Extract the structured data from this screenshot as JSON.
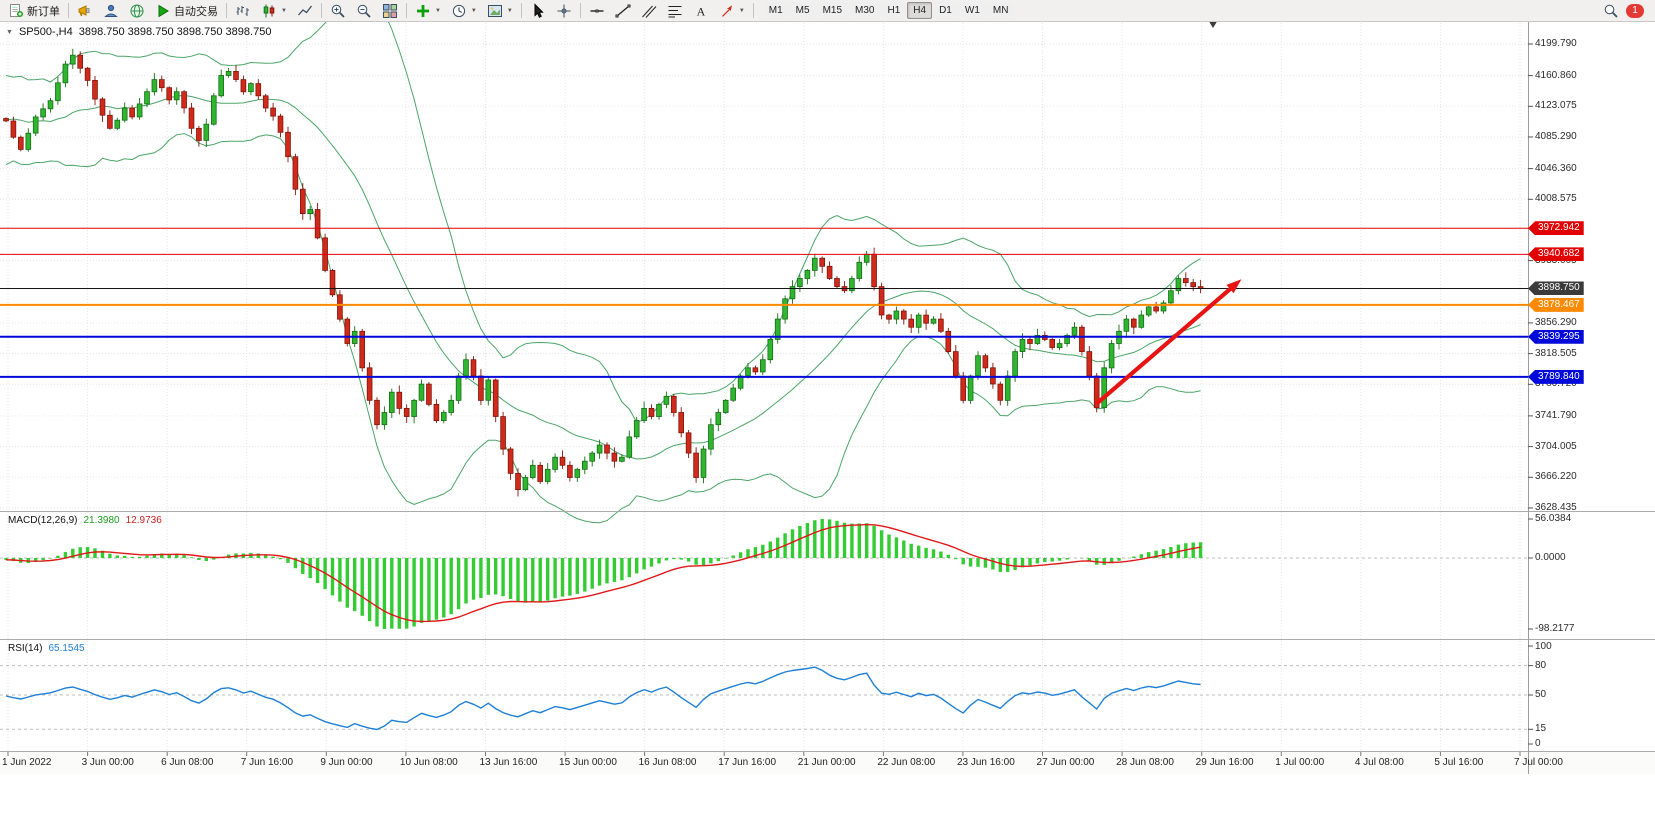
{
  "toolbar": {
    "new_order_label": "新订单",
    "algo_trading_label": "自动交易",
    "timeframes": [
      "M1",
      "M5",
      "M15",
      "M30",
      "H1",
      "H4",
      "D1",
      "W1",
      "MN"
    ],
    "active_timeframe": "H4",
    "notification_badge": "1",
    "icon_buttons": [
      "new-order",
      "news",
      "community",
      "market",
      "algo-trading",
      "bar-chart",
      "candle-chart",
      "line-chart",
      "zoom-in",
      "zoom-out",
      "tile-windows",
      "indicators-add",
      "timeframes-clock",
      "chart-template",
      "cursor",
      "crosshair",
      "horizontal-line",
      "trend-line",
      "channel",
      "fibonacci",
      "text-tool",
      "arrows-tool",
      "search",
      "notifications"
    ]
  },
  "chart_title": {
    "symbol": "SP500-,H4",
    "ohlc": "3898.750 3898.750 3898.750 3898.750"
  },
  "chart_data": {
    "type": "candlestick",
    "symbol": "SP500-",
    "timeframe": "H4",
    "time_axis_labels": [
      "1 Jun 2022",
      "3 Jun 00:00",
      "6 Jun 08:00",
      "7 Jun 16:00",
      "9 Jun 00:00",
      "10 Jun 08:00",
      "13 Jun 16:00",
      "15 Jun 00:00",
      "16 Jun 08:00",
      "17 Jun 16:00",
      "21 Jun 00:00",
      "22 Jun 08:00",
      "23 Jun 16:00",
      "27 Jun 00:00",
      "28 Jun 08:00",
      "29 Jun 16:00",
      "1 Jul 00:00",
      "4 Jul 08:00",
      "5 Jul 16:00",
      "7 Jul 00:00"
    ],
    "price_axis_ticks": [
      4199.79,
      4160.86,
      4123.075,
      4085.29,
      4046.36,
      4008.575,
      3933.005,
      3856.29,
      3818.505,
      3780.72,
      3741.79,
      3704.005,
      3666.22,
      3628.435
    ],
    "horizontal_lines": [
      {
        "price": 3972.942,
        "label": "3972.942",
        "color": "#e10000",
        "width": 1,
        "tag_bg": "#e10000"
      },
      {
        "price": 3940.682,
        "label": "3940.682",
        "color": "#e10000",
        "width": 1,
        "tag_bg": "#e10000"
      },
      {
        "price": 3898.75,
        "label": "3898.750",
        "color": "#151515",
        "width": 1,
        "tag_bg": "#3a3a3a",
        "is_current_price": true
      },
      {
        "price": 3878.467,
        "label": "3878.467",
        "color": "#ff8a00",
        "width": 2,
        "tag_bg": "#ff8a00"
      },
      {
        "price": 3839.295,
        "label": "3839.295",
        "color": "#0009d9",
        "width": 2,
        "tag_bg": "#0009d9"
      },
      {
        "price": 3789.84,
        "label": "3789.840",
        "color": "#0009d9",
        "width": 2,
        "tag_bg": "#0009d9"
      }
    ],
    "indicator_warmup": [
      4120,
      4060,
      4100,
      4140,
      4080,
      4110,
      4150,
      4090,
      4130,
      4070,
      4110,
      4140,
      4100,
      4060,
      4120,
      4150,
      4090,
      4130,
      4080,
      4108
    ],
    "closes": [
      4105,
      4085,
      4070,
      4090,
      4110,
      4120,
      4130,
      4152,
      4175,
      4186,
      4170,
      4155,
      4132,
      4112,
      4096,
      4106,
      4121,
      4110,
      4126,
      4141,
      4156,
      4146,
      4131,
      4141,
      4121,
      4096,
      4081,
      4101,
      4136,
      4161,
      4166,
      4156,
      4141,
      4151,
      4136,
      4121,
      4111,
      4091,
      4061,
      4021,
      3991,
      3996,
      3961,
      3921,
      3891,
      3861,
      3831,
      3846,
      3801,
      3761,
      3731,
      3746,
      3771,
      3751,
      3741,
      3761,
      3781,
      3756,
      3736,
      3746,
      3761,
      3791,
      3811,
      3791,
      3761,
      3786,
      3741,
      3701,
      3671,
      3651,
      3666,
      3681,
      3661,
      3676,
      3691,
      3681,
      3666,
      3676,
      3686,
      3696,
      3706,
      3696,
      3686,
      3691,
      3716,
      3736,
      3751,
      3741,
      3756,
      3766,
      3746,
      3721,
      3696,
      3666,
      3701,
      3731,
      3746,
      3761,
      3776,
      3791,
      3801,
      3796,
      3811,
      3836,
      3861,
      3886,
      3901,
      3911,
      3921,
      3936,
      3926,
      3911,
      3901,
      3896,
      3911,
      3931,
      3941,
      3901,
      3866,
      3861,
      3871,
      3861,
      3851,
      3866,
      3856,
      3861,
      3846,
      3821,
      3791,
      3761,
      3791,
      3816,
      3801,
      3781,
      3761,
      3791,
      3821,
      3836,
      3831,
      3841,
      3836,
      3826,
      3831,
      3841,
      3851,
      3821,
      3791,
      3752,
      3801,
      3831,
      3846,
      3861,
      3851,
      3866,
      3876,
      3871,
      3881,
      3896,
      3911,
      3906,
      3901,
      3898.75
    ],
    "bollinger": {
      "period": 20,
      "deviations": 2
    },
    "macd": {
      "name": "MACD(12,26,9)",
      "main_value": "21.3980",
      "signal_value": "12.9736",
      "fast": 12,
      "slow": 26,
      "signal_period": 9,
      "axis_labels": [
        {
          "value": 56.0384,
          "label": "56.0384"
        },
        {
          "value": 0,
          "label": "0.0000"
        },
        {
          "value": -98.2177,
          "label": "-98.2177"
        }
      ]
    },
    "rsi": {
      "name": "RSI(14)",
      "value": "65.1545",
      "period": 14,
      "axis_labels": [
        {
          "value": 100,
          "label": "100"
        },
        {
          "value": 80,
          "label": "80"
        },
        {
          "value": 50,
          "label": "50"
        },
        {
          "value": 15,
          "label": "15"
        },
        {
          "value": 0,
          "label": "0"
        }
      ],
      "levels": [
        80,
        50,
        15
      ]
    },
    "trend_arrow": {
      "from_candle": 147,
      "from_price": 3757,
      "to_candle": 166.5,
      "to_price": 3910,
      "color": "#e81414"
    },
    "colors": {
      "up": "#2fb52f",
      "up_border": "#156e15",
      "down": "#cf2a1b",
      "down_border": "#801509",
      "bollinger": "#4ba567",
      "macd_hist": "#33cc33",
      "macd_signal": "#e01818",
      "rsi_line": "#1e7fd6",
      "grid": "#e5e5e5",
      "level_dash": "#bdbdbd",
      "axis_border": "#9d9d9d"
    }
  }
}
